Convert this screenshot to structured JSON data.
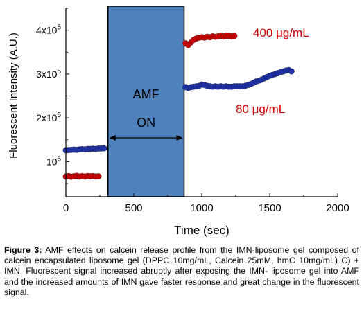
{
  "chart_data": {
    "type": "scatter",
    "xlabel": "Time (sec)",
    "ylabel": "Fluorescent Intensity (A.U.)",
    "xlim": [
      0,
      2000
    ],
    "ylim": [
      20000,
      450000
    ],
    "x_ticks": [
      0,
      500,
      1000,
      1500,
      2000
    ],
    "x_tick_labels": [
      "0",
      "500",
      "1000",
      "1500",
      "2000"
    ],
    "y_ticks": [
      100000,
      200000,
      300000,
      400000
    ],
    "y_tick_labels": [
      {
        "base": "10",
        "exp": "5"
      },
      {
        "base": "2x10",
        "exp": "5"
      },
      {
        "base": "3x10",
        "exp": "5"
      },
      {
        "base": "4x10",
        "exp": "5"
      }
    ],
    "grid": false,
    "amf_region": {
      "x_start": 310,
      "x_end": 870,
      "label_top": "AMF",
      "label_bottom": "ON",
      "color": "#4f81bd"
    },
    "series": [
      {
        "name": "400 μg/mL",
        "color": "#cc0000",
        "points": [
          [
            0,
            66000
          ],
          [
            20,
            67000
          ],
          [
            40,
            65500
          ],
          [
            60,
            66500
          ],
          [
            80,
            67500
          ],
          [
            100,
            66000
          ],
          [
            120,
            67000
          ],
          [
            140,
            66000
          ],
          [
            160,
            67000
          ],
          [
            180,
            66500
          ],
          [
            200,
            67000
          ],
          [
            220,
            66000
          ],
          [
            240,
            66500
          ],
          [
            880,
            370000
          ],
          [
            900,
            366000
          ],
          [
            920,
            372000
          ],
          [
            940,
            378000
          ],
          [
            960,
            381000
          ],
          [
            980,
            383000
          ],
          [
            1000,
            384000
          ],
          [
            1020,
            383000
          ],
          [
            1040,
            385000
          ],
          [
            1060,
            384000
          ],
          [
            1080,
            386000
          ],
          [
            1100,
            385000
          ],
          [
            1120,
            386000
          ],
          [
            1140,
            387000
          ],
          [
            1160,
            386000
          ],
          [
            1180,
            387000
          ],
          [
            1200,
            387000
          ],
          [
            1220,
            386000
          ],
          [
            1240,
            387000
          ]
        ]
      },
      {
        "name": "80 μg/mL",
        "color": "#1f2fa8",
        "points": [
          [
            0,
            126000
          ],
          [
            20,
            126500
          ],
          [
            40,
            127000
          ],
          [
            60,
            127500
          ],
          [
            80,
            127000
          ],
          [
            100,
            128000
          ],
          [
            120,
            128500
          ],
          [
            140,
            128000
          ],
          [
            160,
            129000
          ],
          [
            180,
            129000
          ],
          [
            200,
            129500
          ],
          [
            220,
            129000
          ],
          [
            240,
            130000
          ],
          [
            260,
            130000
          ],
          [
            280,
            130500
          ],
          [
            880,
            270000
          ],
          [
            900,
            268000
          ],
          [
            920,
            270000
          ],
          [
            940,
            271000
          ],
          [
            960,
            272000
          ],
          [
            980,
            273000
          ],
          [
            1000,
            276000
          ],
          [
            1020,
            275000
          ],
          [
            1040,
            273000
          ],
          [
            1060,
            272000
          ],
          [
            1080,
            271000
          ],
          [
            1100,
            272000
          ],
          [
            1120,
            271000
          ],
          [
            1140,
            272000
          ],
          [
            1160,
            271000
          ],
          [
            1180,
            272000
          ],
          [
            1200,
            271000
          ],
          [
            1220,
            271000
          ],
          [
            1240,
            272000
          ],
          [
            1260,
            272000
          ],
          [
            1280,
            272000
          ],
          [
            1300,
            272000
          ],
          [
            1320,
            273000
          ],
          [
            1340,
            275000
          ],
          [
            1360,
            277000
          ],
          [
            1380,
            280000
          ],
          [
            1400,
            283000
          ],
          [
            1420,
            285000
          ],
          [
            1440,
            287000
          ],
          [
            1460,
            290000
          ],
          [
            1480,
            293000
          ],
          [
            1500,
            296000
          ],
          [
            1520,
            298000
          ],
          [
            1540,
            300000
          ],
          [
            1560,
            302000
          ],
          [
            1580,
            304000
          ],
          [
            1600,
            306000
          ],
          [
            1620,
            308000
          ],
          [
            1640,
            309000
          ],
          [
            1660,
            306000
          ]
        ]
      }
    ],
    "annotations": [
      {
        "text": "400 μg/mL",
        "color": "#cc0000"
      },
      {
        "text": "80 μg/mL",
        "color": "#cc0000"
      }
    ]
  },
  "caption": {
    "label": "Figure 3:",
    "text": " AMF effects on calcein release profile from the IMN-liposome gel composed of calcein encapsulated liposome gel (DPPC 10mg/mL, Calcein 25mM, hmC 10mg/mL) C) + IMN. Fluorescent signal increased abruptly after exposing the IMN- liposome gel into AMF and the increased amounts of IMN gave faster response and great change in the fluorescent signal."
  }
}
